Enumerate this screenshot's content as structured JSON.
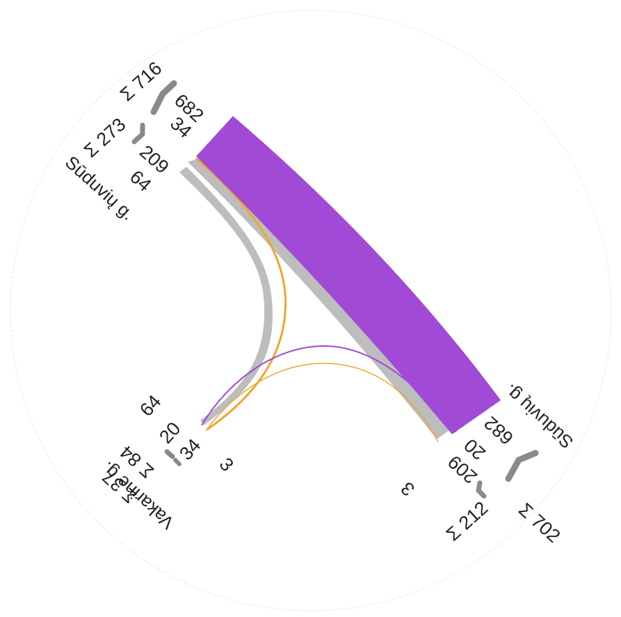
{
  "colors": {
    "purple": "#a04ad6",
    "orange": "#f0a52a",
    "gray": "#bdbdbd",
    "bracket": "#8a8a8a",
    "circle_edge": "#eeeeee"
  },
  "nodes": {
    "top_left": {
      "road": "Sūduvių g.",
      "sum_in": "Σ 716",
      "sum_out": "Σ 273",
      "in_682": "682",
      "in_34": "34",
      "out_209": "209",
      "out_64": "64"
    },
    "bottom_right": {
      "road": "Sūduvių g.",
      "sum_in": "Σ 702",
      "sum_out": "Σ 212",
      "in_682": "682",
      "in_20": "20",
      "out_209": "209",
      "out_3": "3"
    },
    "bottom_left": {
      "road": "Vakarinė g.",
      "sum_in": "Σ 84",
      "sum_out": "Σ 37",
      "v_64": "64",
      "v_20": "20",
      "v_34": "34",
      "v_3": "3"
    }
  },
  "flows": [
    {
      "from": "Sūduvių g. (top-left)",
      "to": "Sūduvių g. (bottom-right)",
      "value": 682,
      "color": "purple"
    },
    {
      "from": "Sūduvių g. (bottom-right)",
      "to": "Sūduvių g. (top-left)",
      "value": 209,
      "color": "gray"
    },
    {
      "from": "Vakarinė g.",
      "to": "Sūduvių g. (top-left)",
      "value": 64,
      "color": "gray"
    },
    {
      "from": "Sūduvių g. (top-left)",
      "to": "Vakarinė g.",
      "value": 34,
      "color": "orange"
    },
    {
      "from": "Sūduvių g. (bottom-right)",
      "to": "Vakarinė g.",
      "value": 20,
      "color": "purple"
    },
    {
      "from": "Vakarinė g.",
      "to": "Sūduvių g. (bottom-right)",
      "value": 3,
      "color": "orange"
    }
  ]
}
